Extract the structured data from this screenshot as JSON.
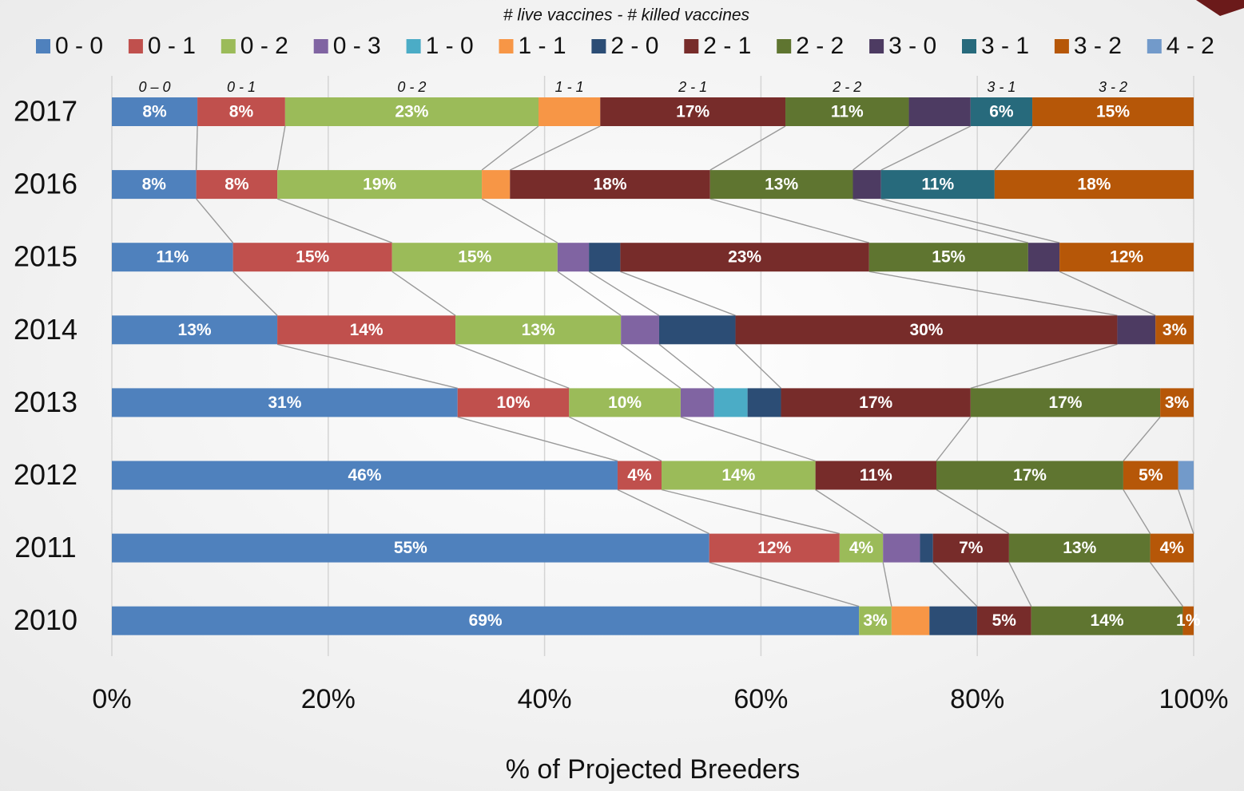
{
  "chart_data": {
    "type": "stacked_bar_horizontal",
    "stacking": "percent",
    "legend_title": "# live vaccines - # killed vaccines",
    "x_label": "% of Projected Breeders",
    "categories": [
      "2017",
      "2016",
      "2015",
      "2014",
      "2013",
      "2012",
      "2011",
      "2010"
    ],
    "top_labels": [
      "0 – 0",
      "0 - 1",
      "0 - 2",
      "1 - 1",
      "2 - 1",
      "2 - 2",
      "3 - 1",
      "3 - 2"
    ],
    "series": [
      {
        "name": "0 - 0",
        "color": "#4f81bd",
        "values": [
          7.9,
          7.8,
          11.2,
          13,
          31,
          46,
          55,
          69
        ],
        "value_labels": [
          "8%",
          "8%",
          "11%",
          "13%",
          "31%",
          "46%",
          "55%",
          "69%"
        ]
      },
      {
        "name": "0 - 1",
        "color": "#c0504d",
        "values": [
          8.1,
          7.5,
          14.7,
          14,
          10,
          4,
          12,
          0
        ],
        "value_labels": [
          "8%",
          "8%",
          "15%",
          "14%",
          "10%",
          "4%",
          "12%",
          null
        ]
      },
      {
        "name": "0 - 2",
        "color": "#9bbb59",
        "values": [
          23.4,
          18.9,
          15.3,
          13,
          10,
          14,
          4,
          3
        ],
        "value_labels": [
          "23%",
          "19%",
          "15%",
          "13%",
          "10%",
          "14%",
          "4%",
          "3%"
        ]
      },
      {
        "name": "0 - 3",
        "color": "#8064a2",
        "values": [
          0,
          0,
          2.9,
          3,
          3,
          0,
          3.4,
          0
        ],
        "value_labels": [
          null,
          null,
          null,
          null,
          null,
          null,
          null,
          null
        ]
      },
      {
        "name": "1 - 0",
        "color": "#4bacc6",
        "values": [
          0,
          0,
          0,
          0,
          3,
          0,
          0,
          0
        ],
        "value_labels": [
          null,
          null,
          null,
          null,
          null,
          null,
          null,
          null
        ]
      },
      {
        "name": "1 - 1",
        "color": "#f79646",
        "values": [
          5.7,
          2.6,
          0,
          0,
          0,
          0,
          0,
          3.5
        ],
        "value_labels": [
          null,
          null,
          null,
          null,
          null,
          null,
          null,
          null
        ]
      },
      {
        "name": "2 - 0",
        "color": "#2c4d75",
        "values": [
          0,
          0,
          2.9,
          6,
          3,
          0,
          1.2,
          4.4
        ],
        "value_labels": [
          null,
          null,
          null,
          null,
          null,
          null,
          null,
          null
        ]
      },
      {
        "name": "2 - 1",
        "color": "#772c2a",
        "values": [
          17.1,
          18.5,
          23,
          30,
          17,
          11,
          7,
          5
        ],
        "value_labels": [
          "17%",
          "18%",
          "23%",
          "30%",
          "17%",
          "11%",
          "7%",
          "5%"
        ]
      },
      {
        "name": "2 - 2",
        "color": "#5f7530",
        "values": [
          11.4,
          13.2,
          14.7,
          0,
          17,
          17,
          13,
          14
        ],
        "value_labels": [
          "11%",
          "13%",
          "15%",
          null,
          "17%",
          "17%",
          "13%",
          "14%"
        ]
      },
      {
        "name": "3 - 0",
        "color": "#4d3b62",
        "values": [
          5.7,
          2.6,
          2.9,
          3,
          0,
          0,
          0,
          0
        ],
        "value_labels": [
          null,
          null,
          null,
          null,
          null,
          null,
          null,
          null
        ]
      },
      {
        "name": "3 - 1",
        "color": "#276a7c",
        "values": [
          5.7,
          10.5,
          0,
          0,
          0,
          0,
          0,
          0
        ],
        "value_labels": [
          "6%",
          "11%",
          null,
          null,
          null,
          null,
          null,
          null
        ]
      },
      {
        "name": "3 - 2",
        "color": "#b65708",
        "values": [
          14.9,
          18.4,
          12.4,
          3,
          3,
          5,
          4,
          1
        ],
        "value_labels": [
          "15%",
          "18%",
          "12%",
          "3%",
          "3%",
          "5%",
          "4%",
          "1%"
        ]
      },
      {
        "name": "4 - 2",
        "color": "#729aca",
        "values": [
          0,
          0,
          0,
          0,
          0,
          1.4,
          0,
          0
        ],
        "value_labels": [
          null,
          null,
          null,
          null,
          null,
          null,
          null,
          null
        ]
      }
    ],
    "xlim": [
      0,
      100
    ],
    "xticks": [
      {
        "value": 0,
        "label": "0%"
      },
      {
        "value": 20,
        "label": "20%"
      },
      {
        "value": 40,
        "label": "40%"
      },
      {
        "value": 60,
        "label": "60%"
      },
      {
        "value": 80,
        "label": "80%"
      },
      {
        "value": 100,
        "label": "100%"
      }
    ],
    "grid": true
  }
}
